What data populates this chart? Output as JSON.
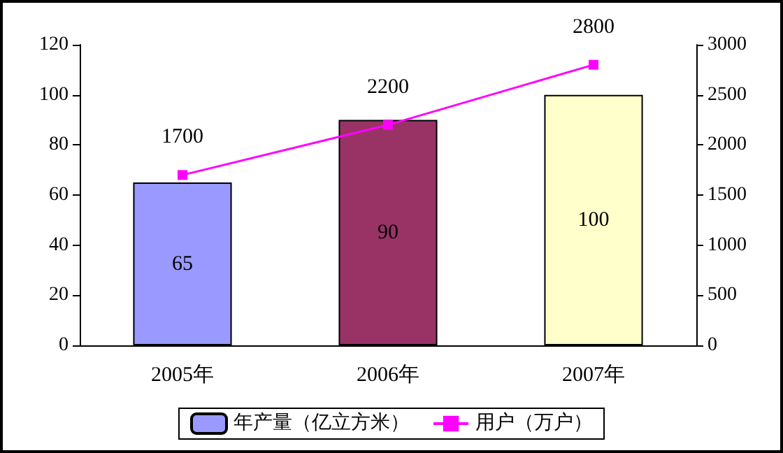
{
  "chart_data": {
    "type": "bar",
    "categories": [
      "2005年",
      "2006年",
      "2007年"
    ],
    "series": [
      {
        "name": "年产量（亿立方米）",
        "color": "#9999ff",
        "colors": [
          "#9999ff",
          "#993366",
          "#ffffcc"
        ],
        "values": [
          65,
          90,
          100
        ]
      },
      {
        "name": "用户（万户）",
        "type": "line",
        "axis": "y2",
        "color": "#ff00ff",
        "values": [
          1700,
          2200,
          2800
        ]
      }
    ],
    "ylim": [
      0,
      120
    ],
    "yticks": [
      0,
      20,
      40,
      60,
      80,
      100,
      120
    ],
    "y2lim": [
      0,
      3000
    ],
    "y2ticks": [
      0,
      500,
      1000,
      1500,
      2000,
      2500,
      3000
    ],
    "grid": false,
    "legend": "bottom",
    "marker": "square",
    "line_style": "solid",
    "data_labels": true
  }
}
